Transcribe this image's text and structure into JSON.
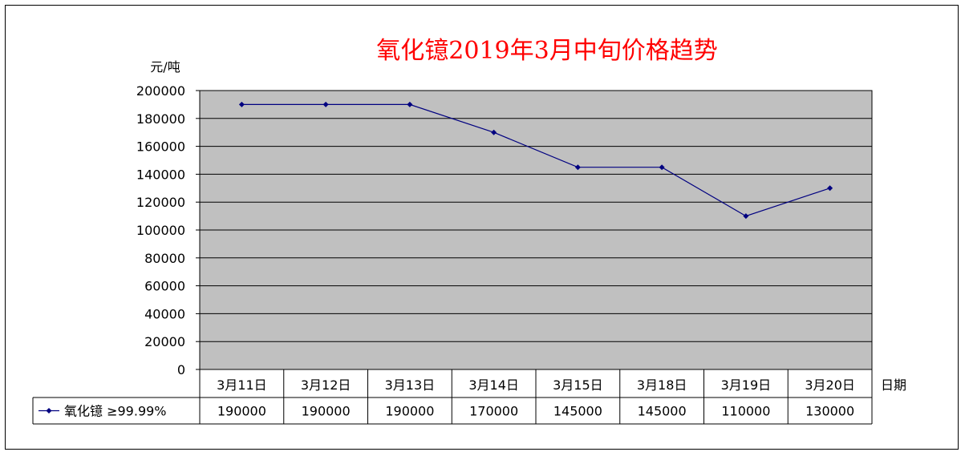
{
  "chart_data": {
    "type": "line",
    "title": "氧化镱2019年3月中旬价格趋势",
    "ylabel": "元/吨",
    "xlabel": "日期",
    "categories": [
      "3月11日",
      "3月12日",
      "3月13日",
      "3月14日",
      "3月15日",
      "3月18日",
      "3月19日",
      "3月20日"
    ],
    "series": [
      {
        "name": "氧化镱 ≥99.99%",
        "values": [
          190000,
          190000,
          190000,
          170000,
          145000,
          145000,
          110000,
          130000
        ]
      }
    ],
    "ylim": [
      0,
      200000
    ],
    "yticks": [
      "0",
      "20000",
      "40000",
      "60000",
      "80000",
      "100000",
      "120000",
      "140000",
      "160000",
      "180000",
      "200000"
    ],
    "value_labels": [
      "190000",
      "190000",
      "190000",
      "170000",
      "145000",
      "145000",
      "110000",
      "130000"
    ],
    "grid": true,
    "legend": "data-table",
    "colors": {
      "plot_bg": "#c0c0c0",
      "line": "#000080",
      "title": "#ff0000",
      "grid": "#000000"
    }
  }
}
